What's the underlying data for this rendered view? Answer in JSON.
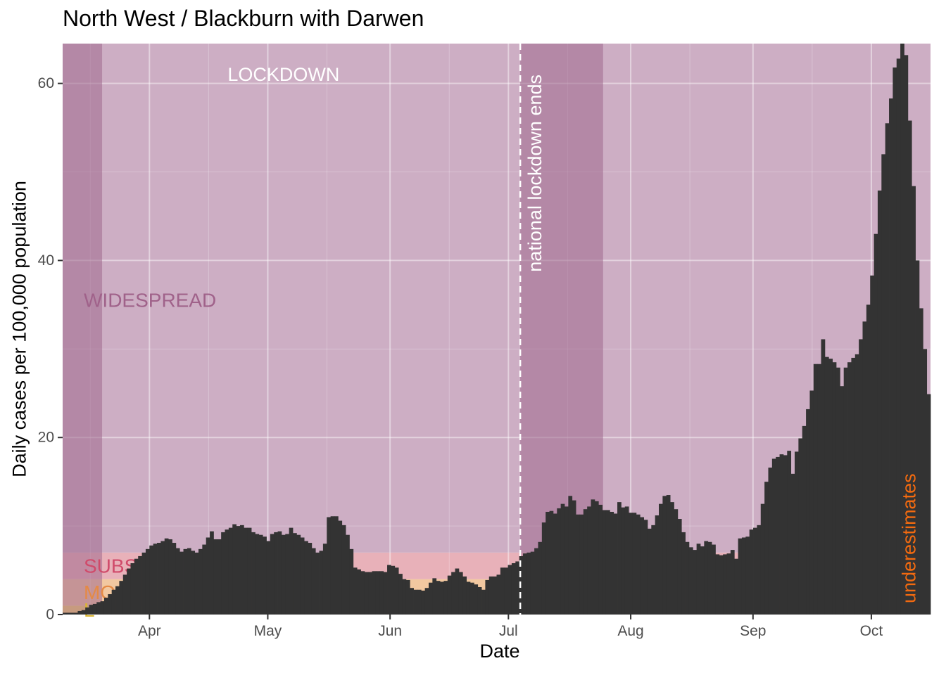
{
  "title": "North West / Blackburn with Darwen",
  "chart_data": {
    "type": "bar",
    "title": "North West / Blackburn with Darwen",
    "xlabel": "Date",
    "ylabel": "Daily cases per 100,000 population",
    "start_date": "2020-03-10",
    "end_date": "2020-10-15",
    "ylim": [
      0,
      64.5
    ],
    "y_ticks": [
      0,
      20,
      40,
      60
    ],
    "x_ticks": [
      {
        "label": "Apr",
        "date": "2020-04-01"
      },
      {
        "label": "May",
        "date": "2020-05-01"
      },
      {
        "label": "Jun",
        "date": "2020-06-01"
      },
      {
        "label": "Jul",
        "date": "2020-07-01"
      },
      {
        "label": "Aug",
        "date": "2020-08-01"
      },
      {
        "label": "Sep",
        "date": "2020-09-01"
      },
      {
        "label": "Oct",
        "date": "2020-10-01"
      }
    ],
    "grid": true,
    "bar_color": "#333333",
    "bands": [
      {
        "label": "LOW",
        "visible_label": "L",
        "from": 0,
        "to": 1,
        "color": "#f5d76e",
        "label_color": "#d9b430"
      },
      {
        "label": "MODERATE",
        "visible_label": "MO",
        "from": 1,
        "to": 4,
        "color": "#f2c8a0",
        "label_color": "#e58a44"
      },
      {
        "label": "SUBSTANTIAL",
        "visible_label": "SUBS",
        "from": 4,
        "to": 7,
        "color": "#e8b1b9",
        "label_color": "#d04a6a"
      },
      {
        "label": "WIDESPREAD",
        "visible_label": "WIDESPREAD",
        "from": 7,
        "to": 64.5,
        "color": "#cdaec4",
        "label_color": "#a0628a"
      }
    ],
    "shaded_periods": [
      {
        "from": "2020-03-10",
        "to": "2020-03-20",
        "color": "#a06a8e",
        "opacity": 0.55
      },
      {
        "from": "2020-07-04",
        "to": "2020-07-25",
        "color": "#a06a8e",
        "opacity": 0.55
      }
    ],
    "annotations": [
      {
        "text": "LOCKDOWN",
        "date": "2020-05-05",
        "y": 61,
        "color": "#ffffff"
      },
      {
        "text": "national lockdown ends",
        "date": "2020-07-04",
        "color": "#ffffff",
        "line": "dashed"
      },
      {
        "text": "underestimates",
        "date": "2020-10-12",
        "color": "#f26a10"
      }
    ],
    "values": [
      0.2,
      0.2,
      0.2,
      0.2,
      0.4,
      0.5,
      0.8,
      1.1,
      1.2,
      1.4,
      1.5,
      1.9,
      2.3,
      2.8,
      3.2,
      3.8,
      4.5,
      5.2,
      5.8,
      6.3,
      6.6,
      7.0,
      7.4,
      7.8,
      8.0,
      8.1,
      8.3,
      8.6,
      8.5,
      8.1,
      7.5,
      7.1,
      7.4,
      7.5,
      7.2,
      7.0,
      7.4,
      7.9,
      8.7,
      9.4,
      8.5,
      8.5,
      9.3,
      9.6,
      9.8,
      10.2,
      10.0,
      10.1,
      9.8,
      9.8,
      9.3,
      9.1,
      9.0,
      8.8,
      8.3,
      9.1,
      9.3,
      9.4,
      9.0,
      9.1,
      9.8,
      9.2,
      9.0,
      8.7,
      8.3,
      8.1,
      7.5,
      7.0,
      7.2,
      8.0,
      11.0,
      11.1,
      11.1,
      10.6,
      10.1,
      9.0,
      7.4,
      5.3,
      5.1,
      4.9,
      4.8,
      4.8,
      4.9,
      4.9,
      4.9,
      4.8,
      5.6,
      5.5,
      5.3,
      4.6,
      4.0,
      3.9,
      3.0,
      2.8,
      2.8,
      2.7,
      3.0,
      3.6,
      4.1,
      3.8,
      3.7,
      3.8,
      4.4,
      4.8,
      5.2,
      4.8,
      4.3,
      3.7,
      3.6,
      3.4,
      3.1,
      2.8,
      3.9,
      4.3,
      4.3,
      4.5,
      5.3,
      5.3,
      5.6,
      5.8,
      6.0,
      6.6,
      6.9,
      7.0,
      7.1,
      7.5,
      8.2,
      10.4,
      11.6,
      11.7,
      11.4,
      12.0,
      12.5,
      12.2,
      13.4,
      12.9,
      11.3,
      11.3,
      11.9,
      12.2,
      13.0,
      12.8,
      12.4,
      11.8,
      11.8,
      11.6,
      11.4,
      12.7,
      12.1,
      12.2,
      11.5,
      11.5,
      11.3,
      11.0,
      10.7,
      9.7,
      10.1,
      11.2,
      12.5,
      13.4,
      13.5,
      12.7,
      11.9,
      10.8,
      9.3,
      8.2,
      7.6,
      7.3,
      8.0,
      7.7,
      8.3,
      8.2,
      7.9,
      6.8,
      6.7,
      6.8,
      6.9,
      7.3,
      6.3,
      8.6,
      8.7,
      8.8,
      9.6,
      9.8,
      10.1,
      12.5,
      15.0,
      16.6,
      17.6,
      17.8,
      18.1,
      18.0,
      18.5,
      15.9,
      18.4,
      19.9,
      21.3,
      23.2,
      25.3,
      28.3,
      28.3,
      31.1,
      29.1,
      28.9,
      28.5,
      27.9,
      25.8,
      27.9,
      28.5,
      29.0,
      29.4,
      31.1,
      33.1,
      35.0,
      38.3,
      43.0,
      47.9,
      52.0,
      55.5,
      58.3,
      61.8,
      62.8,
      64.5,
      63.2,
      55.8,
      48.4,
      40.0,
      34.6,
      30.0,
      24.9
    ]
  }
}
